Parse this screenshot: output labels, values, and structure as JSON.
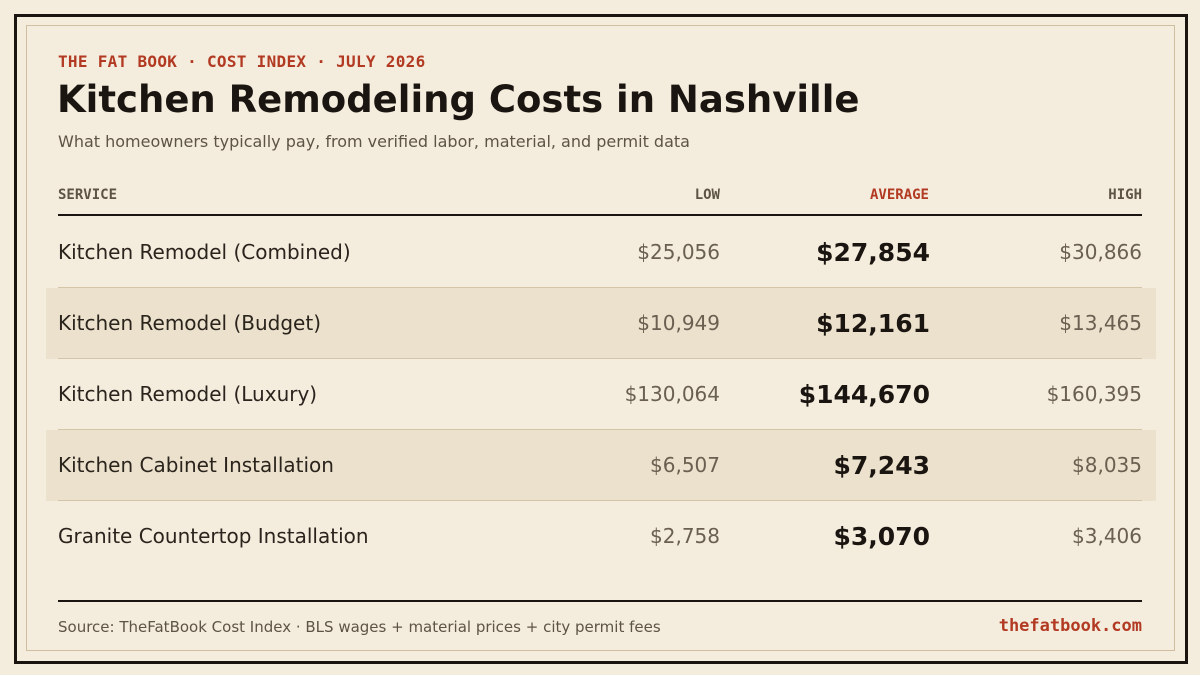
{
  "header": {
    "kicker": "THE FAT BOOK · COST INDEX · JULY 2026",
    "title": "Kitchen Remodeling Costs in Nashville",
    "subtitle": "What homeowners typically pay, from verified labor, material, and permit data"
  },
  "table": {
    "columns": {
      "service": "SERVICE",
      "low": "LOW",
      "average": "AVERAGE",
      "high": "HIGH"
    },
    "rows": [
      {
        "service": "Kitchen Remodel (Combined)",
        "low": "$25,056",
        "average": "$27,854",
        "high": "$30,866"
      },
      {
        "service": "Kitchen Remodel (Budget)",
        "low": "$10,949",
        "average": "$12,161",
        "high": "$13,465"
      },
      {
        "service": "Kitchen Remodel (Luxury)",
        "low": "$130,064",
        "average": "$144,670",
        "high": "$160,395"
      },
      {
        "service": "Kitchen Cabinet Installation",
        "low": "$6,507",
        "average": "$7,243",
        "high": "$8,035"
      },
      {
        "service": "Granite Countertop Installation",
        "low": "$2,758",
        "average": "$3,070",
        "high": "$3,406"
      }
    ]
  },
  "footer": {
    "source": "Source: TheFatBook Cost Index · BLS wages + material prices + city permit fees",
    "site": "thefatbook.com"
  },
  "colors": {
    "background": "#f4ecdd",
    "accent": "#b23a22",
    "ink": "#1a1510",
    "row_shade": "#ece1cc"
  }
}
